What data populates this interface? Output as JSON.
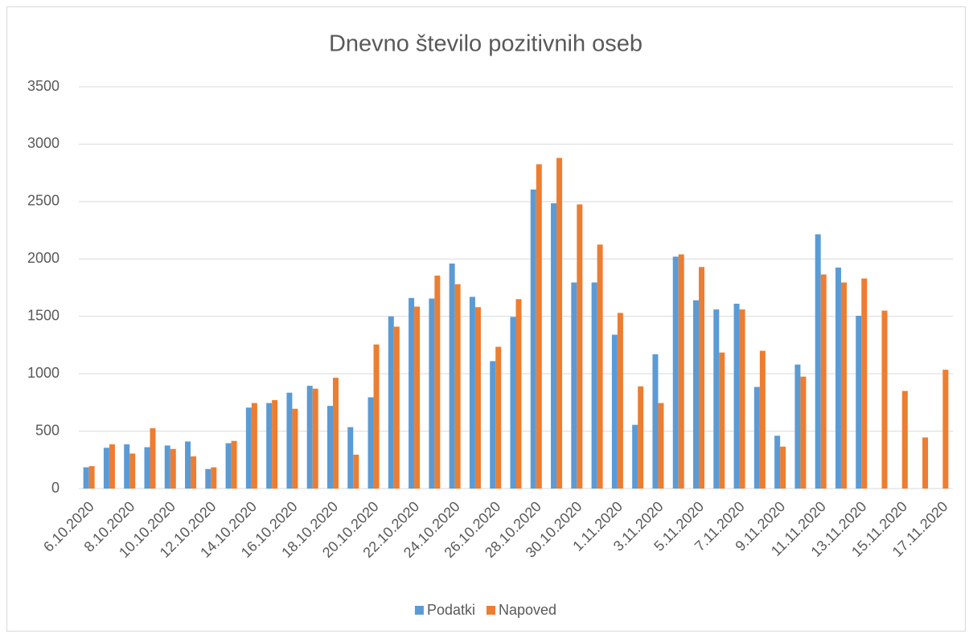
{
  "chart_data": {
    "type": "bar",
    "title": "Dnevno število pozitivnih oseb",
    "categories": [
      "6.10.2020",
      null,
      "8.10.2020",
      null,
      "10.10.2020",
      null,
      "12.10.2020",
      null,
      "14.10.2020",
      null,
      "16.10.2020",
      null,
      "18.10.2020",
      null,
      "20.10.2020",
      null,
      "22.10.2020",
      null,
      "24.10.2020",
      null,
      "26.10.2020",
      null,
      "28.10.2020",
      null,
      "30.10.2020",
      null,
      "1.11.2020",
      null,
      "3.11.2020",
      null,
      "5.11.2020",
      null,
      "7.11.2020",
      null,
      "9.11.2020",
      null,
      "11.11.2020",
      null,
      "13.11.2020",
      null,
      "15.11.2020",
      null,
      "17.11.2020"
    ],
    "series": [
      {
        "name": "Podatki",
        "color": "#5b9bd5",
        "values": [
          185,
          355,
          385,
          360,
          375,
          410,
          170,
          395,
          705,
          745,
          835,
          895,
          720,
          535,
          795,
          1500,
          1660,
          1655,
          1960,
          1670,
          1110,
          1495,
          2605,
          2485,
          1795,
          1795,
          1340,
          555,
          1170,
          2020,
          1640,
          1560,
          1610,
          885,
          460,
          1080,
          2215,
          1925,
          1505,
          null,
          null,
          null,
          null
        ]
      },
      {
        "name": "Napoved",
        "color": "#ed7d31",
        "values": [
          195,
          385,
          305,
          525,
          345,
          280,
          185,
          415,
          745,
          770,
          695,
          870,
          965,
          295,
          1255,
          1410,
          1585,
          1855,
          1780,
          1580,
          1235,
          1650,
          2825,
          2880,
          2475,
          2125,
          1530,
          890,
          745,
          2040,
          1930,
          1185,
          1560,
          1200,
          365,
          975,
          1865,
          1795,
          1830,
          1550,
          850,
          445,
          1035
        ]
      }
    ],
    "ylim": [
      0,
      3500
    ],
    "yticks": [
      0,
      500,
      1000,
      1500,
      2000,
      2500,
      3000,
      3500
    ],
    "grid": true,
    "legend": "bottom"
  }
}
